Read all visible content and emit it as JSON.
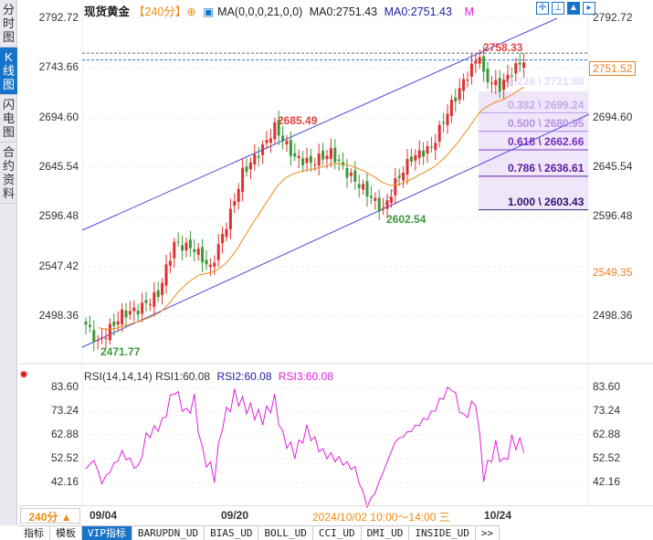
{
  "sidebar": {
    "items": [
      {
        "label": "分时图"
      },
      {
        "label": "K线图",
        "active": true
      },
      {
        "label": "闪电图"
      },
      {
        "label": "合约资料"
      }
    ]
  },
  "header": {
    "instrument": "现货黄金",
    "period": "【240分】",
    "ma_label": "MA(0,0,0,21,0,0)",
    "ma0a": "MA0:2751.43",
    "ma0b": "MA0:2751.43",
    "m": "M"
  },
  "toolbar": {
    "icons": [
      "crosshair-icon",
      "fit-icon",
      "zoom-in-icon",
      "scroll-right-icon"
    ]
  },
  "price_axis": {
    "left": [
      "2792.72",
      "2743.66",
      "2694.60",
      "2645.54",
      "2596.48",
      "2547.42",
      "2498.36"
    ],
    "right": [
      "2792.72",
      "2694.60",
      "2645.54",
      "2596.48",
      "2498.36"
    ],
    "current": "2751.52",
    "marker": "2549.35"
  },
  "annotations": {
    "high": "2758.33",
    "mid_high": "2685.49",
    "mid_low": "2602.54",
    "low": "2471.77"
  },
  "fib": [
    {
      "label": "0.236 \\ 2721.88",
      "price": 2721.88
    },
    {
      "label": "0.382 \\ 2699.24",
      "price": 2699.24
    },
    {
      "label": "0.500 \\ 2680.95",
      "price": 2680.95
    },
    {
      "label": "0.618 \\ 2662.66",
      "price": 2662.66
    },
    {
      "label": "0.786 \\ 2636.61",
      "price": 2636.61
    },
    {
      "label": "1.000 \\ 2603.43",
      "price": 2603.43
    }
  ],
  "price_path": [
    [
      0,
      2490
    ],
    [
      3,
      2471.77
    ],
    [
      9,
      2500
    ],
    [
      13,
      2505
    ],
    [
      18,
      2520
    ],
    [
      22,
      2570
    ],
    [
      27,
      2565
    ],
    [
      31,
      2545
    ],
    [
      36,
      2600
    ],
    [
      39,
      2640
    ],
    [
      44,
      2665
    ],
    [
      47,
      2685
    ],
    [
      52,
      2655
    ],
    [
      56,
      2650
    ],
    [
      61,
      2660
    ],
    [
      65,
      2640
    ],
    [
      70,
      2620
    ],
    [
      74,
      2602.54
    ],
    [
      77,
      2630
    ],
    [
      81,
      2655
    ],
    [
      86,
      2665
    ],
    [
      90,
      2700
    ],
    [
      94,
      2730
    ],
    [
      98,
      2758
    ],
    [
      99,
      2735
    ],
    [
      103,
      2725
    ],
    [
      106,
      2740
    ],
    [
      109,
      2752
    ]
  ],
  "rsi": {
    "label": "RSI(14,14,14)",
    "rsi1": "RSI1:60.08",
    "rsi2": "RSI2:60.08",
    "rsi3": "RSI3:60.08",
    "axis": [
      "83.60",
      "73.24",
      "62.88",
      "52.52",
      "42.16"
    ],
    "path": [
      [
        0,
        48
      ],
      [
        2,
        52
      ],
      [
        4,
        42
      ],
      [
        9,
        55
      ],
      [
        13,
        48
      ],
      [
        15,
        62
      ],
      [
        19,
        68
      ],
      [
        22,
        83
      ],
      [
        25,
        72
      ],
      [
        27,
        78
      ],
      [
        29,
        55
      ],
      [
        32,
        45
      ],
      [
        34,
        68
      ],
      [
        37,
        80
      ],
      [
        40,
        75
      ],
      [
        44,
        70
      ],
      [
        47,
        78
      ],
      [
        49,
        62
      ],
      [
        52,
        55
      ],
      [
        55,
        65
      ],
      [
        59,
        55
      ],
      [
        63,
        52
      ],
      [
        67,
        48
      ],
      [
        70,
        32
      ],
      [
        72,
        38
      ],
      [
        77,
        60
      ],
      [
        81,
        65
      ],
      [
        86,
        72
      ],
      [
        89,
        80
      ],
      [
        91,
        84
      ],
      [
        94,
        70
      ],
      [
        97,
        78
      ],
      [
        99,
        45
      ],
      [
        102,
        58
      ],
      [
        104,
        50
      ],
      [
        106,
        60
      ],
      [
        109,
        58
      ]
    ]
  },
  "xaxis": {
    "period_btn": "240分 ▲",
    "labels": [
      "09/04",
      "09/20",
      "10/24"
    ],
    "cursor": "2024/10/02 10:00～14:00 三"
  },
  "tabs": [
    "指标",
    "模板",
    "VIP指标",
    "BARUPDN_UD",
    "BIAS_UD",
    "BOLL_UD",
    "CCI_UD",
    "DMI_UD",
    "INSIDE_UD",
    ">>"
  ],
  "colors": {
    "up": "#e03030",
    "down": "#3a9a3a",
    "ma": "#f08a10",
    "channel": "#4848e0",
    "accent": "#1874c9",
    "rsi": "#e020e0"
  }
}
